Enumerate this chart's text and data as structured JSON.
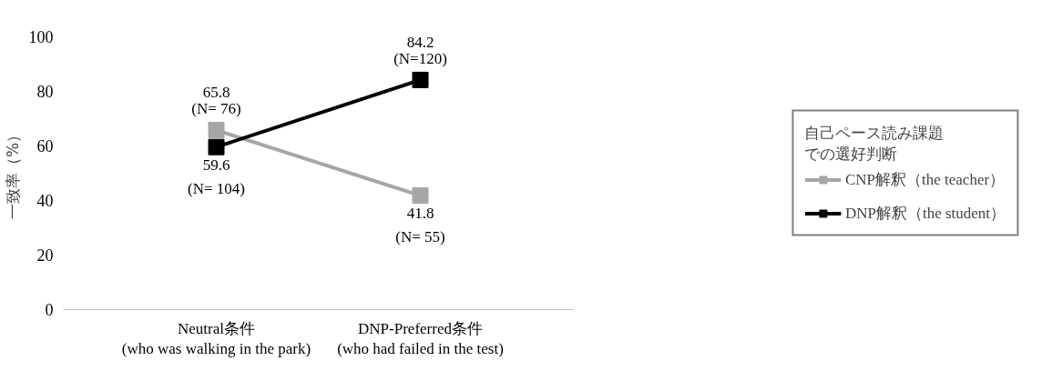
{
  "chart_data": {
    "type": "line",
    "categories": [
      "Neutral条件\n(who was walking in the park)",
      "DNP-Preferred条件\n(who had failed in the test)"
    ],
    "ylabel": "一致率（%）",
    "ylim": [
      0,
      100
    ],
    "yticks": [
      0,
      20,
      40,
      60,
      80,
      100
    ],
    "grid": false,
    "marker": "square",
    "line_style": "solid",
    "legend": "right",
    "legend_title": "自己ペース読み課題での選好判断",
    "series": [
      {
        "name": "CNP解釈（the teacher）",
        "color": "#a6a6a6",
        "values": [
          65.8,
          41.8
        ],
        "value_labels": [
          "65.8\n(N= 76)",
          "41.8\n(N= 55)"
        ]
      },
      {
        "name": "DNP解釈（the student）",
        "color": "#000000",
        "values": [
          59.6,
          84.2
        ],
        "value_labels": [
          "59.6\n(N= 104)",
          "84.2\n(N=120)"
        ]
      }
    ]
  }
}
